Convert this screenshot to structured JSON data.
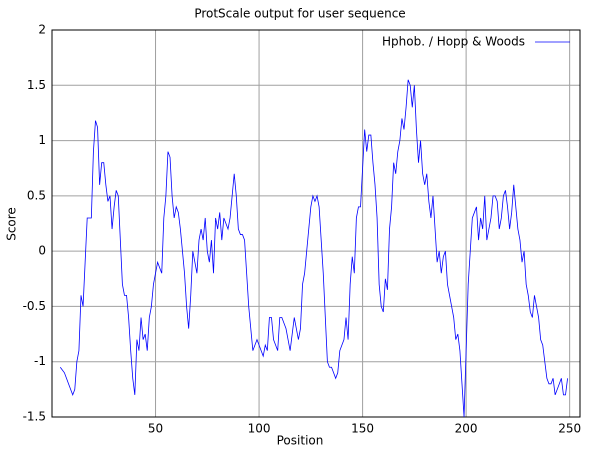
{
  "chart_data": {
    "type": "line",
    "title": "ProtScale output for user sequence",
    "x_label": "Position",
    "y_label": "Score",
    "xlim": [
      0,
      255
    ],
    "ylim": [
      -1.5,
      2
    ],
    "xticks": [
      50,
      100,
      150,
      200,
      250
    ],
    "yticks": [
      -1.5,
      -1,
      -0.5,
      0,
      0.5,
      1,
      1.5,
      2
    ],
    "grid": true,
    "legend": "upper right",
    "x": [
      4,
      6,
      8,
      10,
      11,
      12,
      13,
      14,
      15,
      16,
      17,
      18,
      19,
      20,
      21,
      22,
      23,
      24,
      25,
      26,
      27,
      28,
      29,
      30,
      31,
      32,
      33,
      34,
      35,
      36,
      37,
      38,
      39,
      40,
      41,
      42,
      43,
      44,
      45,
      46,
      47,
      48,
      49,
      50,
      51,
      52,
      53,
      54,
      55,
      56,
      57,
      58,
      59,
      60,
      61,
      62,
      63,
      64,
      65,
      66,
      67,
      68,
      69,
      70,
      71,
      72,
      73,
      74,
      75,
      76,
      77,
      78,
      79,
      80,
      81,
      82,
      83,
      84,
      85,
      86,
      87,
      88,
      89,
      90,
      91,
      92,
      93,
      94,
      95,
      96,
      97,
      98,
      99,
      100,
      101,
      102,
      103,
      104,
      105,
      106,
      107,
      108,
      109,
      110,
      111,
      112,
      113,
      114,
      115,
      116,
      117,
      118,
      119,
      120,
      121,
      122,
      123,
      124,
      125,
      126,
      127,
      128,
      129,
      130,
      131,
      132,
      133,
      134,
      135,
      136,
      137,
      138,
      139,
      140,
      141,
      142,
      143,
      144,
      145,
      146,
      147,
      148,
      149,
      150,
      151,
      152,
      153,
      154,
      155,
      156,
      157,
      158,
      159,
      160,
      161,
      162,
      163,
      164,
      165,
      166,
      167,
      168,
      169,
      170,
      171,
      172,
      173,
      174,
      175,
      176,
      177,
      178,
      179,
      180,
      181,
      182,
      183,
      184,
      185,
      186,
      187,
      188,
      189,
      190,
      191,
      192,
      193,
      194,
      195,
      196,
      197,
      198,
      199,
      200,
      201,
      202,
      203,
      204,
      205,
      206,
      207,
      208,
      209,
      210,
      211,
      212,
      213,
      214,
      215,
      216,
      217,
      218,
      219,
      220,
      221,
      222,
      223,
      224,
      225,
      226,
      227,
      228,
      229,
      230,
      231,
      232,
      233,
      234,
      235,
      236,
      237,
      238,
      239,
      240,
      241,
      242,
      243,
      244,
      245,
      246,
      247,
      248,
      249
    ],
    "series": [
      {
        "name": "Hphob. / Hopp & Woods",
        "color": "#0000ff",
        "values": [
          -1.05,
          -1.1,
          -1.2,
          -1.3,
          -1.25,
          -1.0,
          -0.9,
          -0.4,
          -0.5,
          -0.1,
          0.3,
          0.3,
          0.3,
          0.9,
          1.18,
          1.12,
          0.6,
          0.8,
          0.8,
          0.6,
          0.45,
          0.5,
          0.2,
          0.4,
          0.55,
          0.5,
          0.1,
          -0.3,
          -0.4,
          -0.4,
          -0.6,
          -0.9,
          -1.15,
          -1.3,
          -0.8,
          -0.9,
          -0.6,
          -0.8,
          -0.75,
          -0.9,
          -0.6,
          -0.5,
          -0.3,
          -0.2,
          -0.1,
          -0.15,
          -0.2,
          0.3,
          0.5,
          0.9,
          0.85,
          0.5,
          0.3,
          0.4,
          0.35,
          0.2,
          0.0,
          -0.2,
          -0.5,
          -0.7,
          -0.4,
          0.0,
          -0.1,
          -0.2,
          0.1,
          0.2,
          0.1,
          0.3,
          0.0,
          -0.1,
          0.1,
          -0.2,
          0.3,
          0.2,
          0.35,
          0.1,
          0.3,
          0.25,
          0.2,
          0.3,
          0.5,
          0.7,
          0.5,
          0.2,
          0.15,
          0.15,
          0.1,
          -0.2,
          -0.5,
          -0.7,
          -0.9,
          -0.85,
          -0.8,
          -0.85,
          -0.9,
          -0.95,
          -0.85,
          -0.9,
          -0.6,
          -0.6,
          -0.8,
          -0.85,
          -0.9,
          -0.6,
          -0.6,
          -0.65,
          -0.7,
          -0.8,
          -0.9,
          -0.75,
          -0.6,
          -0.7,
          -0.8,
          -0.7,
          -0.3,
          -0.2,
          0.0,
          0.2,
          0.4,
          0.5,
          0.45,
          0.5,
          0.4,
          0.1,
          -0.2,
          -0.6,
          -1.0,
          -1.05,
          -1.05,
          -1.1,
          -1.15,
          -1.1,
          -0.9,
          -0.85,
          -0.8,
          -0.6,
          -0.8,
          -0.3,
          -0.05,
          -0.2,
          0.3,
          0.4,
          0.4,
          0.75,
          1.1,
          0.9,
          1.05,
          1.05,
          0.8,
          0.6,
          0.3,
          -0.3,
          -0.5,
          -0.55,
          -0.25,
          -0.35,
          0.2,
          0.4,
          0.8,
          0.7,
          0.9,
          1.0,
          1.2,
          1.1,
          1.3,
          1.55,
          1.5,
          1.3,
          1.5,
          1.1,
          0.8,
          1.0,
          0.7,
          0.6,
          0.7,
          0.45,
          0.3,
          0.5,
          0.2,
          -0.1,
          0.0,
          -0.2,
          -0.05,
          0.0,
          -0.3,
          -0.4,
          -0.5,
          -0.6,
          -0.8,
          -0.75,
          -0.9,
          -1.2,
          -1.5,
          -0.9,
          -0.3,
          0.0,
          0.3,
          0.35,
          0.4,
          0.1,
          0.3,
          0.2,
          0.5,
          0.1,
          0.2,
          0.3,
          0.5,
          0.5,
          0.45,
          0.2,
          0.3,
          0.5,
          0.55,
          0.4,
          0.2,
          0.35,
          0.6,
          0.4,
          0.2,
          0.1,
          -0.1,
          0.0,
          -0.3,
          -0.4,
          -0.55,
          -0.6,
          -0.4,
          -0.5,
          -0.6,
          -0.8,
          -0.85,
          -1.0,
          -1.15,
          -1.2,
          -1.2,
          -1.15,
          -1.3,
          -1.25,
          -1.2,
          -1.15,
          -1.3,
          -1.3,
          -1.15
        ]
      }
    ]
  }
}
